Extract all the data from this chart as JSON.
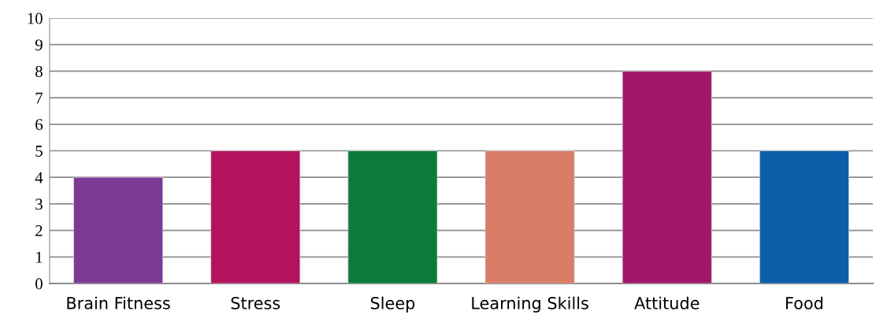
{
  "chart_data": {
    "type": "bar",
    "categories": [
      "Brain Fitness",
      "Stress",
      "Sleep",
      "Learning Skills",
      "Attitude",
      "Food"
    ],
    "values": [
      4,
      5,
      5,
      5,
      8,
      5
    ],
    "colors": [
      "#7b3a96",
      "#b3135e",
      "#0b7a3b",
      "#d97c68",
      "#a1186b",
      "#0b5fa8"
    ],
    "ylim": [
      0,
      10
    ],
    "yticks": [
      0,
      1,
      2,
      3,
      4,
      5,
      6,
      7,
      8,
      9,
      10
    ],
    "grid": "y"
  }
}
